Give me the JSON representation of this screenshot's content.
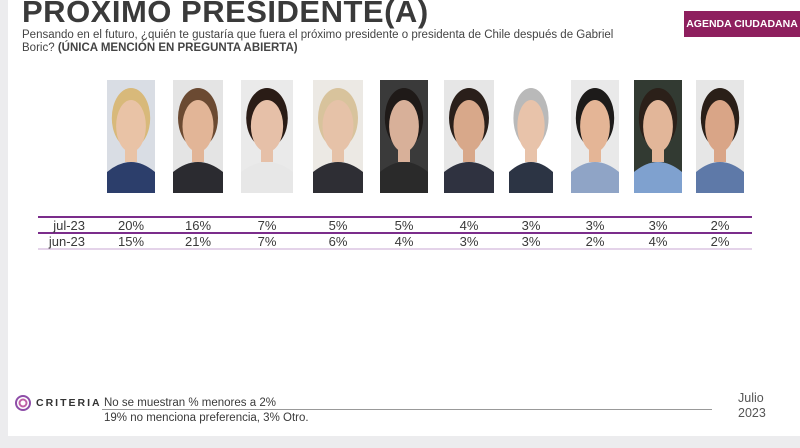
{
  "header": {
    "title": "PROXIMO PRESIDENTE(A)",
    "subtitle_regular": "Pensando en el futuro, ¿quién te gustaría que fuera el próximo presidente o presidenta de Chile después de Gabriel Boric?",
    "subtitle_bold": "(ÚNICA MENCIÓN EN PREGUNTA ABIERTA)",
    "badge": "AGENDA CIUDADANA",
    "badge_color": "#8e1f5e"
  },
  "colors": {
    "row_line": "#7b2d8b",
    "row_line_light": "#c9a7d3",
    "text": "#3a3a3a"
  },
  "chart_data": {
    "type": "table",
    "rows": [
      "jul-23",
      "jun-23"
    ],
    "series": [
      {
        "name": "jul-23",
        "values": [
          20,
          16,
          7,
          5,
          5,
          4,
          3,
          3,
          3,
          2
        ]
      },
      {
        "name": "jun-23",
        "values": [
          15,
          21,
          7,
          6,
          4,
          3,
          3,
          2,
          4,
          2
        ]
      }
    ],
    "value_labels": {
      "jul-23": [
        "20%",
        "16%",
        "7%",
        "5%",
        "5%",
        "4%",
        "3%",
        "3%",
        "3%",
        "2%"
      ],
      "jun-23": [
        "15%",
        "21%",
        "7%",
        "6%",
        "4%",
        "3%",
        "3%",
        "2%",
        "4%",
        "2%"
      ]
    },
    "unit": "%"
  },
  "photos": [
    {
      "bg": "#d9dde4",
      "skin": "#e9c3a6",
      "hair": "#d8b97a",
      "shirt": "#2c3e6b"
    },
    {
      "bg": "#e4e4e4",
      "skin": "#e2b597",
      "hair": "#6b4a32",
      "shirt": "#2b2b30"
    },
    {
      "bg": "#eaeaea",
      "skin": "#e6c0a8",
      "hair": "#2a1c16",
      "shirt": "#e7e7e7"
    },
    {
      "bg": "#ece9e4",
      "skin": "#e6c2a8",
      "hair": "#d8c39c",
      "shirt": "#2e2e34"
    },
    {
      "bg": "#3a3a3a",
      "skin": "#d8b099",
      "hair": "#1f1a18",
      "shirt": "#2a2a2a"
    },
    {
      "bg": "#e6e6e6",
      "skin": "#d8a88a",
      "hair": "#2a1f1a",
      "shirt": "#2f3240"
    },
    {
      "bg": "#ffffff",
      "skin": "#e8c3aa",
      "hair": "#b9b9b9",
      "shirt": "#2c3444"
    },
    {
      "bg": "#e9e9e9",
      "skin": "#e4b596",
      "hair": "#1d1b1a",
      "shirt": "#8fa4c6"
    },
    {
      "bg": "#323a32",
      "skin": "#e2b699",
      "hair": "#2b2019",
      "shirt": "#7fa1cf"
    },
    {
      "bg": "#e6e6e6",
      "skin": "#d9a587",
      "hair": "#2a1f18",
      "shirt": "#5e79a8"
    }
  ],
  "footer": {
    "logo_text": "CRITERIA",
    "note1": "No se muestran % menores a 2%",
    "note2": "19% no menciona preferencia, 3% Otro.",
    "month": "Julio",
    "year": "2023"
  }
}
